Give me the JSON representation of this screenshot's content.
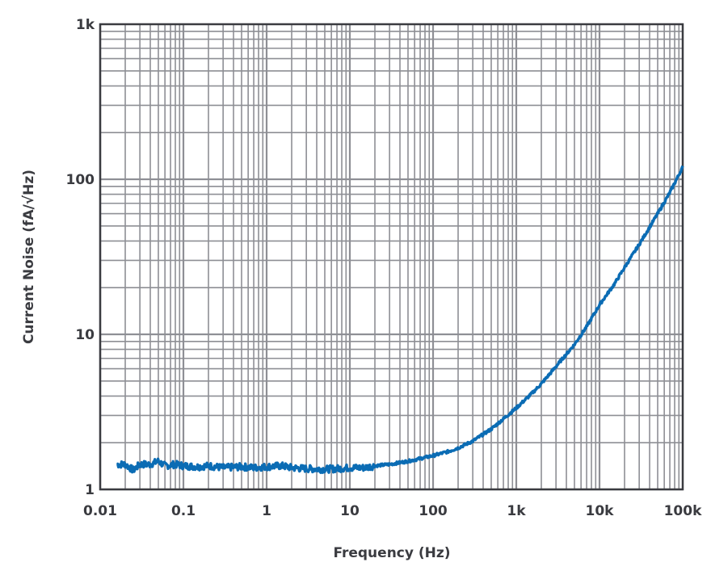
{
  "chart_data": {
    "type": "line",
    "title": "",
    "xlabel": "Frequency (Hz)",
    "ylabel": "Current Noise (fA/√Hz)",
    "x_scale": "log",
    "y_scale": "log",
    "xlim": [
      0.01,
      100000
    ],
    "ylim": [
      1,
      1000
    ],
    "x_ticks": [
      0.01,
      0.1,
      1,
      10,
      100,
      1000,
      10000,
      100000
    ],
    "x_tick_labels": [
      "0.01",
      "0.1",
      "1",
      "10",
      "100",
      "1k",
      "10k",
      "100k"
    ],
    "y_ticks": [
      1,
      10,
      100,
      1000
    ],
    "y_tick_labels": [
      "1",
      "10",
      "100",
      "1k"
    ],
    "grid": true,
    "minor_grid": true,
    "line_color": "#0b6cb4",
    "grid_color": "#8e8f95",
    "series": [
      {
        "x": [
          0.016,
          0.02,
          0.025,
          0.03,
          0.04,
          0.05,
          0.06,
          0.08,
          0.1,
          0.15,
          0.2,
          0.3,
          0.5,
          0.7,
          1,
          1.5,
          2,
          3,
          5,
          7,
          10,
          15,
          20,
          30,
          50,
          70,
          100,
          150,
          200,
          300,
          500,
          700,
          1000,
          1500,
          2000,
          3000,
          5000,
          7000,
          10000,
          15000,
          20000,
          30000,
          50000,
          70000,
          100000
        ],
        "y": [
          1.45,
          1.45,
          1.33,
          1.45,
          1.45,
          1.52,
          1.42,
          1.45,
          1.42,
          1.4,
          1.42,
          1.38,
          1.4,
          1.38,
          1.4,
          1.42,
          1.38,
          1.36,
          1.35,
          1.36,
          1.38,
          1.38,
          1.42,
          1.45,
          1.52,
          1.58,
          1.65,
          1.75,
          1.85,
          2.05,
          2.45,
          2.85,
          3.35,
          4.1,
          4.8,
          6.2,
          8.6,
          11.2,
          15.5,
          21,
          27,
          38,
          60,
          82,
          120
        ]
      }
    ]
  }
}
